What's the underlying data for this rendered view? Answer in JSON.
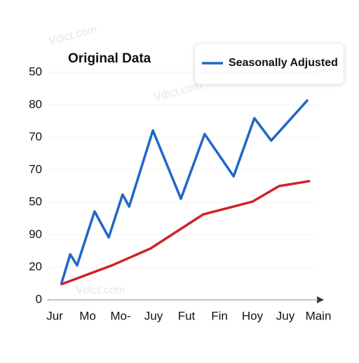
{
  "chart_data": {
    "type": "line",
    "title": "Original Data",
    "watermark": "Vdict.com",
    "xlim": [
      -0.2,
      8.2
    ],
    "xticks": [
      {
        "value": 0,
        "label": "Jur"
      },
      {
        "value": 1,
        "label": "Mo"
      },
      {
        "value": 2,
        "label": "Mo-"
      },
      {
        "value": 3,
        "label": "Juy"
      },
      {
        "value": 4,
        "label": "Fut"
      },
      {
        "value": 5,
        "label": "Fin"
      },
      {
        "value": 6,
        "label": "Hoy"
      },
      {
        "value": 7,
        "label": "Juy"
      },
      {
        "value": 8,
        "label": "Main"
      }
    ],
    "ylim": [
      0,
      70
    ],
    "yticks": [
      0,
      {
        "value": 10,
        "label": "20"
      },
      {
        "value": 20,
        "label": "90"
      },
      {
        "value": 30,
        "label": "50"
      },
      {
        "value": 40,
        "label": "70"
      },
      {
        "value": 50,
        "label": "70"
      },
      {
        "value": 60,
        "label": "80"
      },
      {
        "value": 70,
        "label": "50"
      }
    ],
    "grid": true,
    "legend": "upper right",
    "series": [
      {
        "name": "Seasonally Adjusted",
        "color": "#1f67c8",
        "x": [
          0.21,
          0.47,
          0.68,
          1.21,
          1.64,
          2.06,
          2.26,
          2.98,
          3.83,
          4.55,
          5.43,
          6.06,
          6.57,
          7.66
        ],
        "values": [
          5.2,
          14.0,
          10.6,
          27.2,
          19.2,
          32.4,
          28.7,
          52.1,
          31.1,
          51.0,
          38.0,
          55.9,
          49.0,
          61.3
        ]
      },
      {
        "color": "#d0222a",
        "x": [
          0.21,
          1.74,
          2.91,
          4.51,
          6.0,
          6.81,
          7.72
        ],
        "values": [
          4.8,
          10.6,
          15.8,
          26.3,
          30.2,
          35.0,
          36.5
        ]
      }
    ]
  }
}
